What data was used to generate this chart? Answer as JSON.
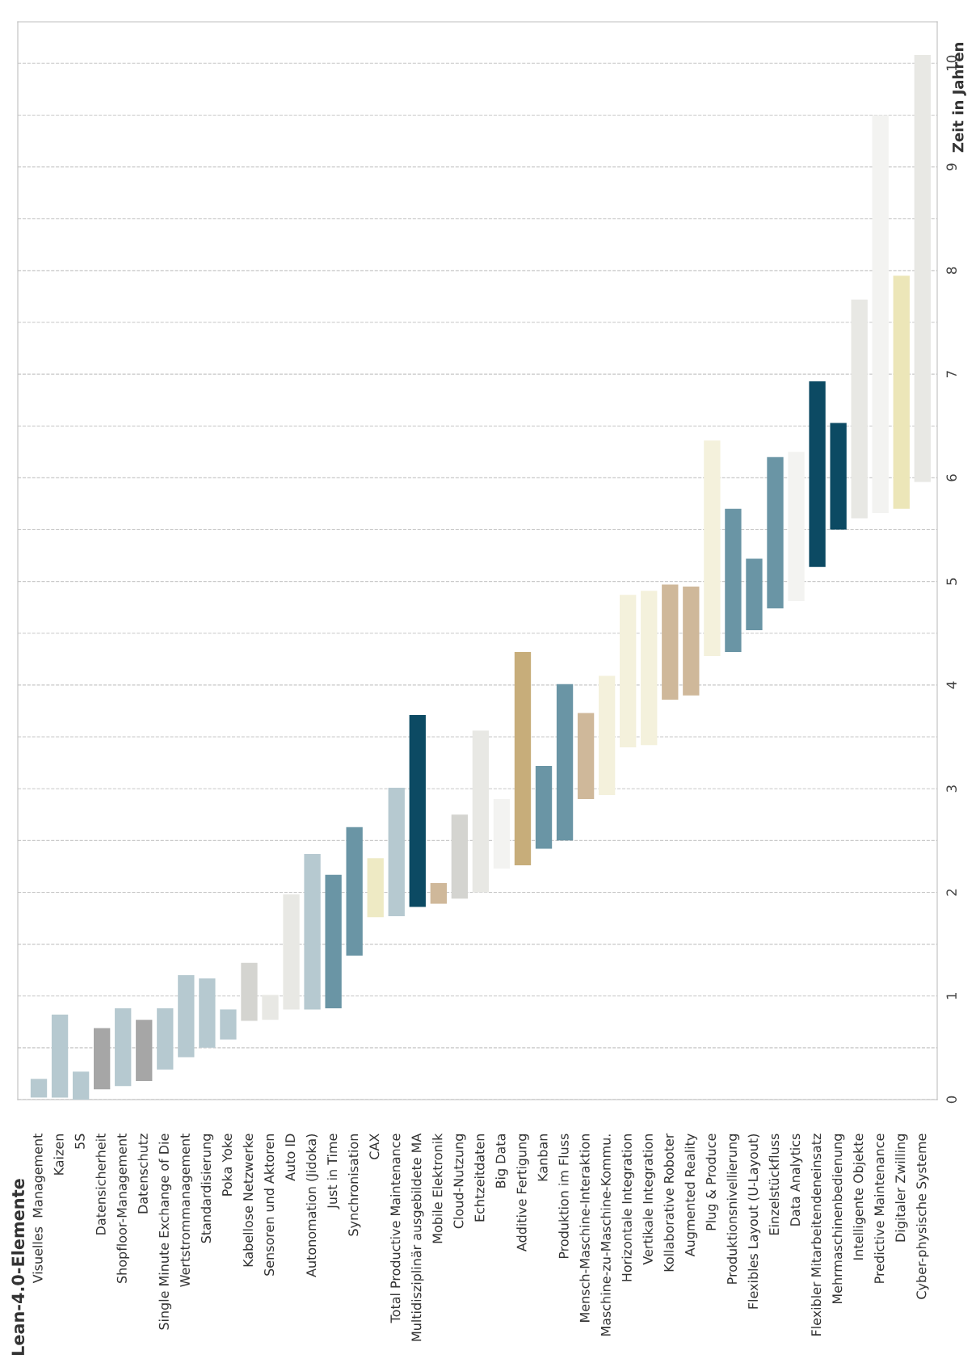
{
  "chart_data": {
    "type": "bar",
    "title": "Lean-4.0-Elemente",
    "ylabel": "Zeit in Jahren",
    "categories": [
      "Visuelles  Management",
      "Kaizen",
      "5S",
      "Datensicherheit",
      "Shopfloor-Management",
      "Datenschutz",
      "Single Minute Exchange of Die",
      "Wertstrommanagement",
      "Standardisierung",
      "Poka Yoke",
      "Kabellose Netzwerke",
      "Sensoren und Aktoren",
      "Auto ID",
      "Autonomation (Jidoka)",
      "Just in Time",
      "Synchronisation",
      "CAX",
      "Total Productive Maintenance",
      "Multidisziplinär ausgebildete MA",
      "Mobile Elektronik",
      "Cloud-Nutzung",
      "Echtzeitdaten",
      "Big Data",
      "Additive Fertigung",
      "Kanban",
      "Produktion im Fluss",
      "Mensch-Maschine-Interaktion",
      "Maschine-zu-Maschine-Kommu.",
      "Horizontale Integration",
      "Vertikale Integration",
      "Kollaborative Roboter",
      "Augmented Reality",
      "Plug & Produce",
      "Produktionsnivellierung",
      "Flexibles Layout (U-Layout)",
      "Einzelstückfluss",
      "Data Analytics",
      "Flexibler Mitarbeitendeneinsatz",
      "Mehrmaschinenbedienung",
      "Intelligente Objekte",
      "Predictive Maintenance",
      "Digitaler Zwilling",
      "Cyber-physische Systeme"
    ],
    "base": [
      0.02,
      0.02,
      0,
      0.1,
      0.13,
      0.18,
      0.29,
      0.41,
      0.5,
      0.58,
      0.76,
      0.77,
      0.87,
      0.87,
      0.88,
      1.39,
      1.76,
      1.77,
      1.86,
      1.89,
      1.94,
      2.0,
      2.23,
      2.26,
      2.42,
      2.5,
      2.9,
      2.94,
      3.4,
      3.42,
      3.86,
      3.9,
      4.28,
      4.32,
      4.53,
      4.74,
      4.81,
      5.14,
      5.5,
      5.61,
      5.66,
      5.7,
      5.96
    ],
    "values": [
      0.18,
      0.8,
      0.27,
      0.59,
      0.75,
      0.59,
      0.59,
      0.79,
      0.67,
      0.29,
      0.56,
      0.24,
      1.11,
      1.5,
      1.29,
      1.24,
      0.57,
      1.24,
      1.85,
      0.2,
      0.81,
      1.56,
      0.67,
      2.06,
      0.8,
      1.51,
      0.83,
      1.15,
      1.47,
      1.49,
      1.11,
      1.05,
      2.08,
      1.38,
      0.69,
      1.46,
      1.44,
      1.79,
      1.03,
      2.11,
      3.84,
      2.25,
      4.12
    ],
    "colors": [
      "#b6c9d0",
      "#b6c9d0",
      "#b6c9d0",
      "#a6a6a6",
      "#b6c9d0",
      "#a6a6a6",
      "#b6c9d0",
      "#b6c9d0",
      "#b6c9d0",
      "#b6c9d0",
      "#d4d4d0",
      "#e8e8e4",
      "#e8e8e4",
      "#b6c9d0",
      "#6a95a5",
      "#6a95a5",
      "#eeeac4",
      "#b6c9d0",
      "#0c4a63",
      "#cfb89a",
      "#d4d4d0",
      "#e8e8e4",
      "#f3f3f1",
      "#c7ad7a",
      "#6a95a5",
      "#6a95a5",
      "#cfb89a",
      "#f4f1dc",
      "#f4f1dc",
      "#f4f1dc",
      "#cfb89a",
      "#cfb89a",
      "#f4f1dc",
      "#6a95a5",
      "#6a95a5",
      "#6a95a5",
      "#f3f3f1",
      "#0c4a63",
      "#0c4a63",
      "#e8e8e4",
      "#f3f3f1",
      "#ece6b8",
      "#e8e8e4"
    ],
    "ylim": [
      0,
      10.4
    ],
    "yticks": [
      0,
      {
        "value": 0.5,
        "label": null
      },
      1,
      {
        "value": 1.5,
        "label": null
      },
      2,
      {
        "value": 2.5,
        "label": null
      },
      3,
      {
        "value": 3.5,
        "label": null
      },
      4,
      {
        "value": 4.5,
        "label": null
      },
      5,
      {
        "value": 5.5,
        "label": null
      },
      6,
      {
        "value": 6.5,
        "label": null
      },
      7,
      {
        "value": 7.5,
        "label": null
      },
      8,
      {
        "value": 8.5,
        "label": null
      },
      9,
      {
        "value": 9.5,
        "label": null
      },
      10
    ],
    "grid": "y",
    "legend": false
  }
}
